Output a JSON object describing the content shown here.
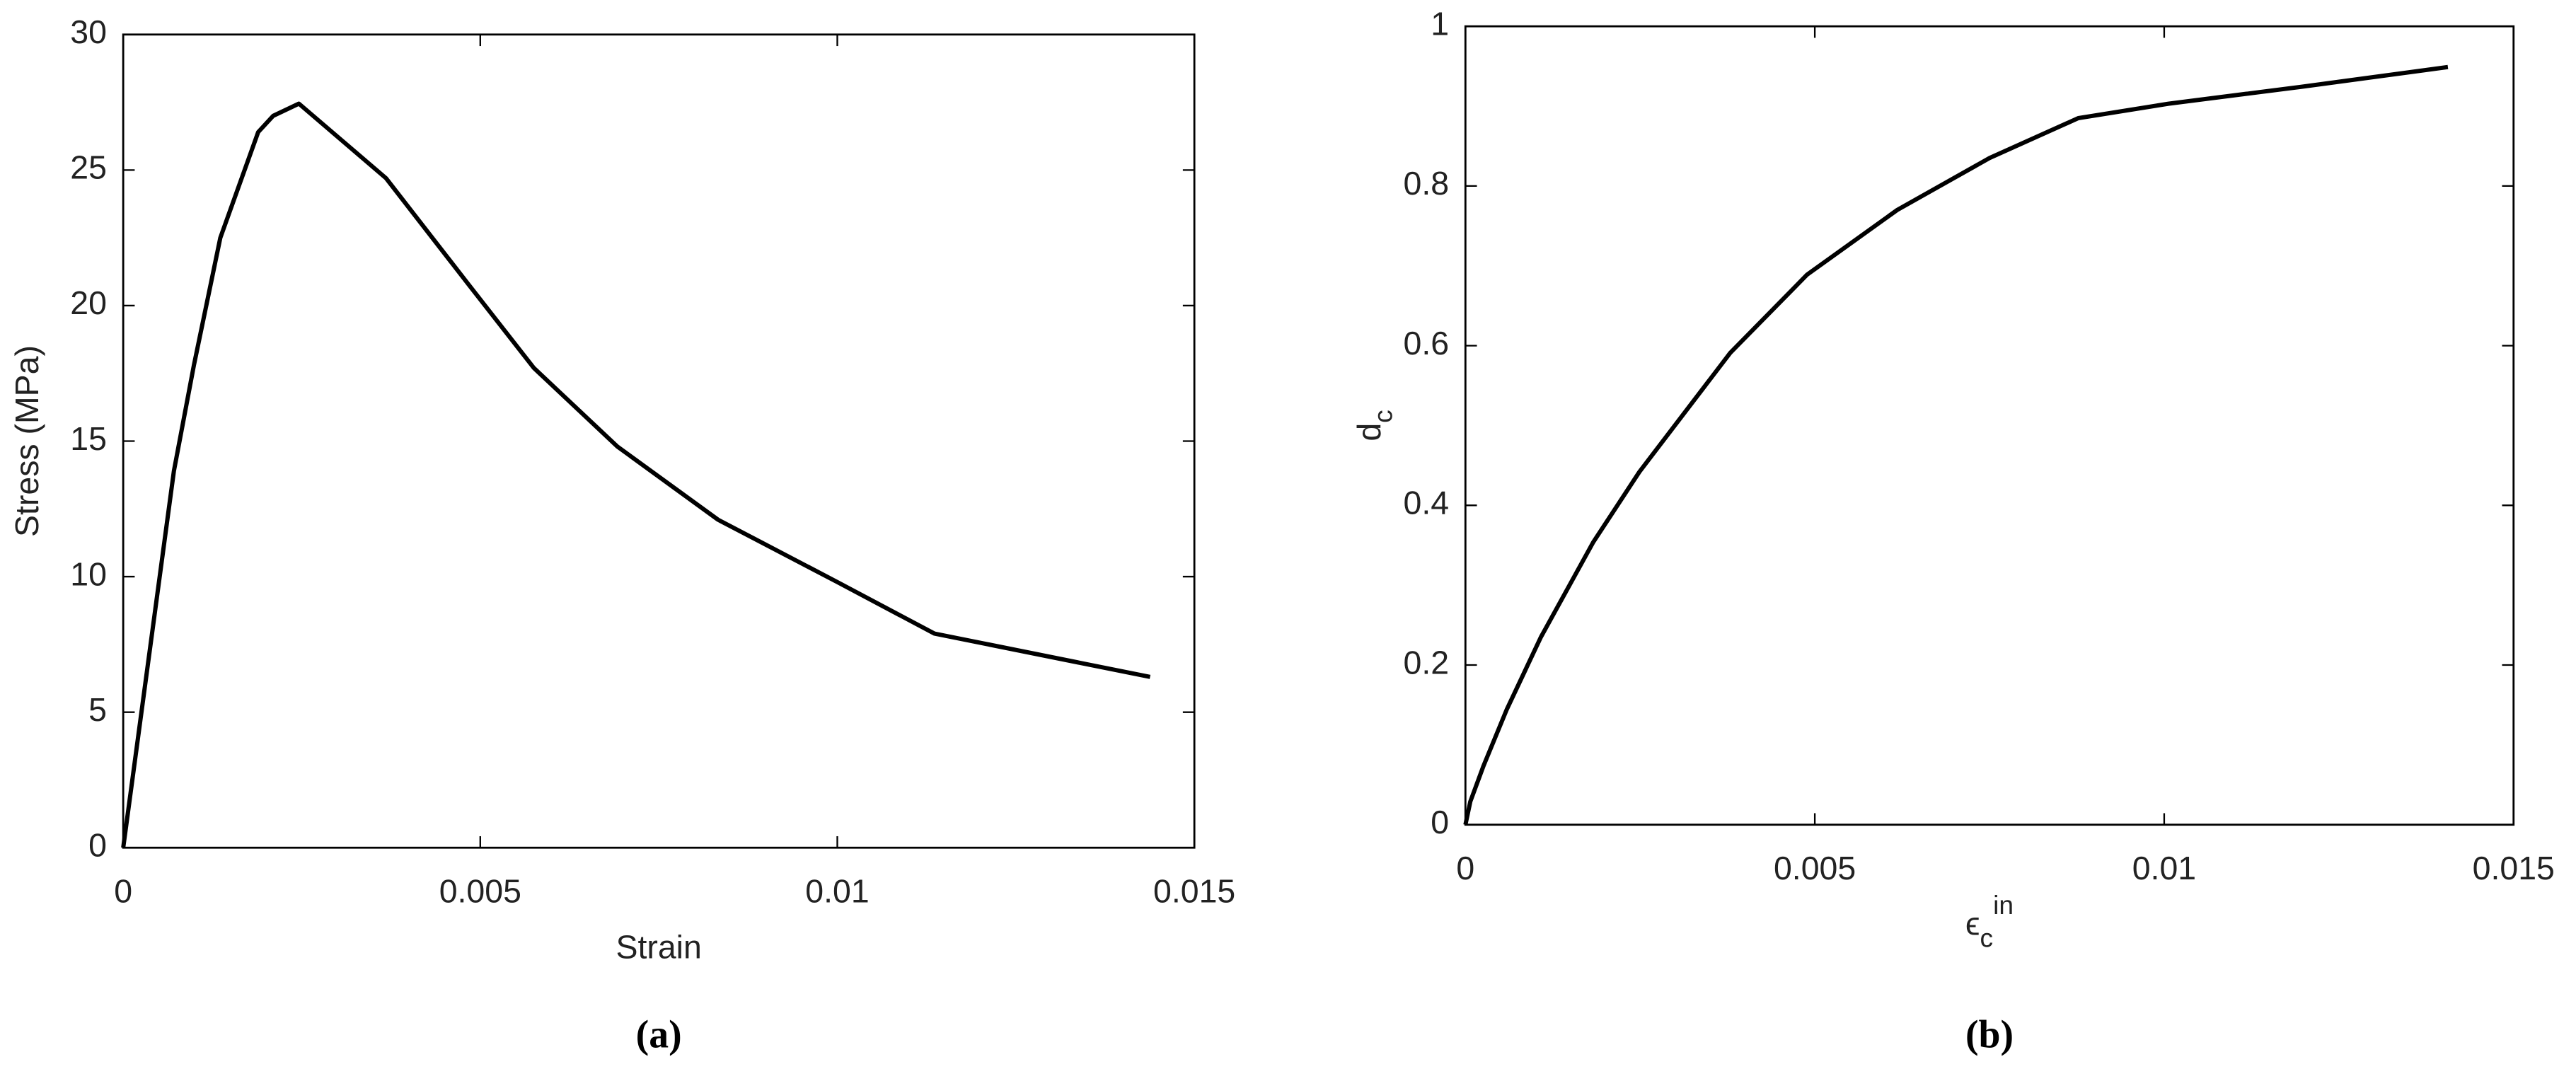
{
  "chart_data": [
    {
      "type": "line",
      "xlabel": "Strain",
      "ylabel": "Stress (MPa)",
      "caption": "(a)",
      "xlim": [
        0,
        0.015
      ],
      "xticks": [
        0,
        0.005,
        0.01,
        0.015
      ],
      "ylim": [
        0,
        30
      ],
      "yticks": [
        0,
        5,
        10,
        15,
        20,
        25,
        30
      ],
      "x": [
        0,
        0.00071,
        0.00099,
        0.00136,
        0.00189,
        0.0021,
        0.00246,
        0.00368,
        0.00483,
        0.00575,
        0.00692,
        0.00833,
        0.01,
        0.01136,
        0.01438
      ],
      "series": [
        {
          "color": "#000000",
          "values": [
            0,
            13.9,
            17.8,
            22.5,
            26.4,
            27.0,
            27.45,
            24.7,
            20.8,
            17.7,
            14.8,
            12.1,
            9.8,
            7.9,
            6.3
          ]
        }
      ]
    },
    {
      "type": "line",
      "xlabel": {
        "text": "ϵ",
        "subscript": "c",
        "superscript": "in"
      },
      "ylabel": {
        "text": "d",
        "subscript": "c"
      },
      "caption": "(b)",
      "xlim": [
        0,
        0.015
      ],
      "xticks": [
        0,
        0.005,
        0.01,
        0.015
      ],
      "ylim": [
        0,
        1
      ],
      "yticks": [
        0,
        0.2,
        0.4,
        0.6,
        0.8,
        1
      ],
      "x": [
        0,
        7e-05,
        0.00026,
        0.00059,
        0.00108,
        0.00183,
        0.00249,
        0.00379,
        0.00489,
        0.00618,
        0.0075,
        0.00877,
        0.01006,
        0.01194,
        0.01406
      ],
      "series": [
        {
          "color": "#000000",
          "values": [
            0,
            0.029,
            0.074,
            0.144,
            0.235,
            0.354,
            0.442,
            0.591,
            0.689,
            0.77,
            0.835,
            0.885,
            0.903,
            0.924,
            0.949
          ]
        }
      ]
    }
  ]
}
